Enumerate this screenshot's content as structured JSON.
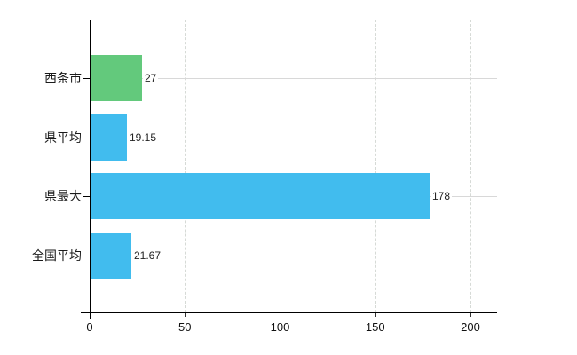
{
  "chart_data": {
    "type": "bar",
    "orientation": "horizontal",
    "title": "",
    "xlabel": "",
    "ylabel": "",
    "categories": [
      "西条市",
      "県平均",
      "県最大",
      "全国平均"
    ],
    "values": [
      27,
      19.15,
      178,
      21.67
    ],
    "value_labels": [
      "27",
      "19.15",
      "178",
      "21.67"
    ],
    "series": [
      {
        "name": "",
        "values": [
          27,
          19.15,
          178,
          21.67
        ]
      }
    ],
    "bar_colors": [
      "#63c97c",
      "#41bcee",
      "#41bcee",
      "#41bcee"
    ],
    "x_ticks": [
      0,
      50,
      100,
      150,
      200
    ],
    "x_tick_labels": [
      "0",
      "50",
      "100",
      "150",
      "200"
    ],
    "xlim": [
      0,
      214
    ],
    "grid": true,
    "legend": false
  },
  "colors": {
    "bar_green": "#63c97c",
    "bar_blue": "#41bcee",
    "grid": "#d8d8d8",
    "axis": "#000000",
    "text": "#1a1a1a",
    "background": "#ffffff"
  }
}
